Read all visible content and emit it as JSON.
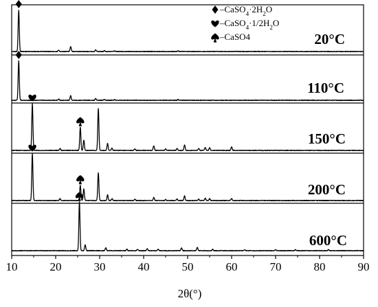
{
  "chart_data": {
    "type": "line",
    "xlabel": "2θ(°)",
    "xlim": [
      10,
      90
    ],
    "xticks": [
      10,
      20,
      30,
      40,
      50,
      60,
      70,
      80,
      90
    ],
    "grid": false,
    "legend": {
      "placement": "top-right",
      "entries": [
        {
          "marker": "diamond",
          "label": "–CaSO",
          "sub1": "4",
          "mid": "·2H",
          "sub2": "2",
          "end": "O"
        },
        {
          "marker": "heart",
          "label": "–CaSO",
          "sub1": "4",
          "mid": "·1/2H",
          "sub2": "2",
          "end": "O"
        },
        {
          "marker": "spade",
          "label": "–CaSO4",
          "sub1": "",
          "mid": "",
          "sub2": "",
          "end": ""
        }
      ]
    },
    "series": [
      {
        "name": "20°C",
        "peaks": [
          [
            11.6,
            100
          ],
          [
            20.7,
            3
          ],
          [
            23.4,
            12
          ],
          [
            29.1,
            4
          ],
          [
            31.1,
            2
          ],
          [
            33.4,
            1.5
          ],
          [
            47.8,
            2
          ]
        ],
        "markers": [
          {
            "symbol": "diamond",
            "x": 11.6
          }
        ]
      },
      {
        "name": "110°C",
        "peaks": [
          [
            11.6,
            100
          ],
          [
            20.7,
            3
          ],
          [
            23.4,
            12
          ],
          [
            29.1,
            4
          ],
          [
            31.1,
            2
          ],
          [
            33.4,
            1.5
          ],
          [
            47.8,
            2
          ]
        ],
        "markers": [
          {
            "symbol": "diamond",
            "x": 11.6
          }
        ]
      },
      {
        "name": "150°C",
        "peaks": [
          [
            14.7,
            100
          ],
          [
            21.0,
            4
          ],
          [
            25.6,
            50
          ],
          [
            26.4,
            22
          ],
          [
            29.7,
            90
          ],
          [
            31.8,
            15
          ],
          [
            32.8,
            5
          ],
          [
            38.0,
            3
          ],
          [
            42.3,
            10
          ],
          [
            45.0,
            3
          ],
          [
            47.6,
            4
          ],
          [
            49.3,
            12
          ],
          [
            52.5,
            4
          ],
          [
            54.0,
            6
          ],
          [
            55.0,
            6
          ],
          [
            60.0,
            8
          ]
        ],
        "markers": [
          {
            "symbol": "heart",
            "x": 14.7
          },
          {
            "symbol": "spade",
            "x": 25.6
          }
        ]
      },
      {
        "name": "200°C",
        "peaks": [
          [
            14.7,
            100
          ],
          [
            21.0,
            4
          ],
          [
            25.6,
            33
          ],
          [
            26.4,
            25
          ],
          [
            29.7,
            60
          ],
          [
            31.8,
            12
          ],
          [
            32.8,
            4
          ],
          [
            38.0,
            3
          ],
          [
            42.3,
            7
          ],
          [
            45.0,
            2
          ],
          [
            47.6,
            3
          ],
          [
            49.3,
            10
          ],
          [
            52.5,
            3
          ],
          [
            54.0,
            5
          ],
          [
            55.0,
            4
          ],
          [
            60.0,
            5
          ]
        ],
        "markers": [
          {
            "symbol": "heart",
            "x": 14.7
          },
          {
            "symbol": "spade",
            "x": 25.6
          }
        ]
      },
      {
        "name": "600°C",
        "peaks": [
          [
            25.4,
            100
          ],
          [
            26.7,
            12
          ],
          [
            31.4,
            6
          ],
          [
            36.2,
            3
          ],
          [
            38.6,
            3
          ],
          [
            40.8,
            4
          ],
          [
            43.3,
            3
          ],
          [
            48.6,
            6
          ],
          [
            52.2,
            7
          ],
          [
            55.7,
            3
          ],
          [
            63.0,
            2
          ],
          [
            70.0,
            2
          ],
          [
            74.5,
            2
          ],
          [
            82.0,
            2
          ]
        ],
        "markers": [
          {
            "symbol": "spade",
            "x": 25.4
          }
        ]
      }
    ]
  }
}
